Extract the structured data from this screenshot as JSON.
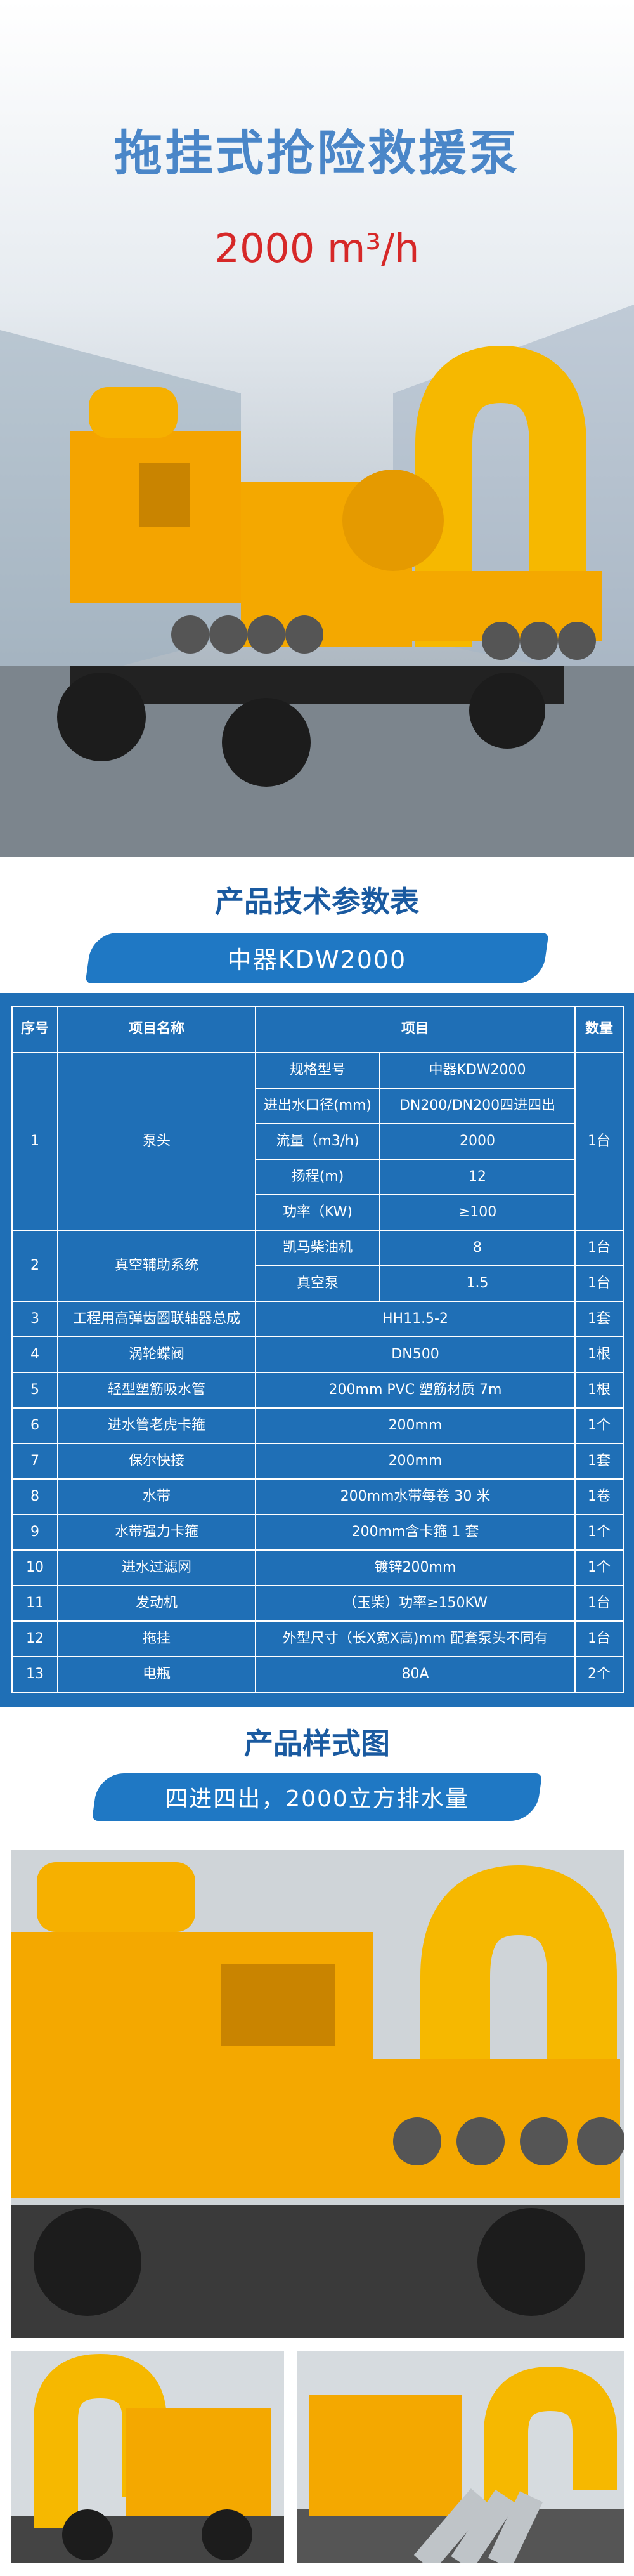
{
  "hero": {
    "title": "拖挂式抢险救援泵",
    "subtitle": "2000 m³/h"
  },
  "spec_section": {
    "heading": "产品技术参数表",
    "banner": "中器KDW2000"
  },
  "table": {
    "headers": [
      "序号",
      "项目名称",
      "项目",
      "数量"
    ],
    "rows": [
      {
        "no": "1",
        "name": "泵头",
        "items": [
          [
            "规格型号",
            "中器KDW2000"
          ],
          [
            "进出水口径(mm)",
            "DN200/DN200四进四出"
          ],
          [
            "流量（m3/h)",
            "2000"
          ],
          [
            "扬程(m)",
            "12"
          ],
          [
            "功率（KW)",
            "≥100"
          ]
        ],
        "qty": [
          "1台"
        ]
      },
      {
        "no": "2",
        "name": "真空辅助系统",
        "items": [
          [
            "凯马柴油机",
            "8"
          ],
          [
            "真空泵",
            "1.5"
          ]
        ],
        "qty": [
          "1台",
          "1台"
        ]
      },
      {
        "no": "3",
        "name": "工程用高弹齿圈联轴器总成",
        "spec": "HH11.5-2",
        "qty": [
          "1套"
        ]
      },
      {
        "no": "4",
        "name": "涡轮蝶阀",
        "spec": "DN500",
        "qty": [
          "1根"
        ]
      },
      {
        "no": "5",
        "name": "轻型塑筋吸水管",
        "spec": "200mm PVC 塑筋材质 7m",
        "qty": [
          "1根"
        ]
      },
      {
        "no": "6",
        "name": "进水管老虎卡箍",
        "spec": "200mm",
        "qty": [
          "1个"
        ]
      },
      {
        "no": "7",
        "name": "保尔快接",
        "spec": "200mm",
        "qty": [
          "1套"
        ]
      },
      {
        "no": "8",
        "name": "水带",
        "spec": "200mm水带每卷 30 米",
        "qty": [
          "1卷"
        ]
      },
      {
        "no": "9",
        "name": "水带强力卡箍",
        "spec": "200mm含卡箍 1 套",
        "qty": [
          "1个"
        ]
      },
      {
        "no": "10",
        "name": "进水过滤网",
        "spec": "镀锌200mm",
        "qty": [
          "1个"
        ]
      },
      {
        "no": "11",
        "name": "发动机",
        "spec": "（玉柴）功率≥150KW",
        "qty": [
          "1台"
        ]
      },
      {
        "no": "12",
        "name": "拖挂",
        "spec": "外型尺寸（长X宽X高)mm 配套泵头不同有",
        "qty": [
          "1台"
        ]
      },
      {
        "no": "13",
        "name": "电瓶",
        "spec": "80A",
        "qty": [
          "2个"
        ]
      }
    ]
  },
  "style_section": {
    "heading": "产品样式图",
    "banner": "四进四出，2000立方排水量"
  }
}
